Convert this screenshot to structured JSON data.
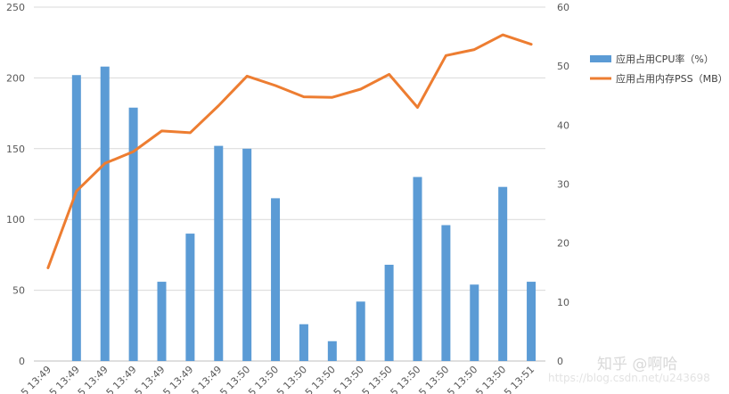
{
  "chart_data": {
    "type": "bar",
    "categories": [
      "5 13:49",
      "5 13:49",
      "5 13:49",
      "5 13:49",
      "5 13:49",
      "5 13:49",
      "5 13:49",
      "5 13:50",
      "5 13:50",
      "5 13:50",
      "5 13:50",
      "5 13:50",
      "5 13:50",
      "5 13:50",
      "5 13:50",
      "5 13:50",
      "5 13:50",
      "5 13:51"
    ],
    "series": [
      {
        "name": "应用占用CPU率（%）",
        "type": "bar",
        "axis": "left",
        "color": "#5b9bd5",
        "values": [
          null,
          202,
          208,
          179,
          56,
          90,
          152,
          150,
          115,
          26,
          14,
          42,
          68,
          130,
          96,
          54,
          123,
          56
        ]
      },
      {
        "name": "应用占用内存PSS（MB）",
        "type": "line",
        "axis": "right",
        "color": "#ed7d31",
        "values": [
          15.8,
          28.8,
          33.5,
          35.5,
          39.0,
          38.7,
          43.3,
          48.3,
          46.7,
          44.8,
          44.7,
          46.1,
          48.6,
          43.0,
          51.8,
          52.8,
          55.3,
          53.7
        ]
      }
    ],
    "y_left": {
      "min": 0,
      "max": 250,
      "ticks": [
        0,
        50,
        100,
        150,
        200,
        250
      ]
    },
    "y_right": {
      "min": 0,
      "max": 60,
      "ticks": [
        0,
        10,
        20,
        30,
        40,
        50,
        60
      ]
    },
    "grid": true,
    "legend_position": "right"
  },
  "watermark": {
    "brand": "知乎 @啊哈",
    "url": "https://blog.csdn.net/u243698"
  }
}
